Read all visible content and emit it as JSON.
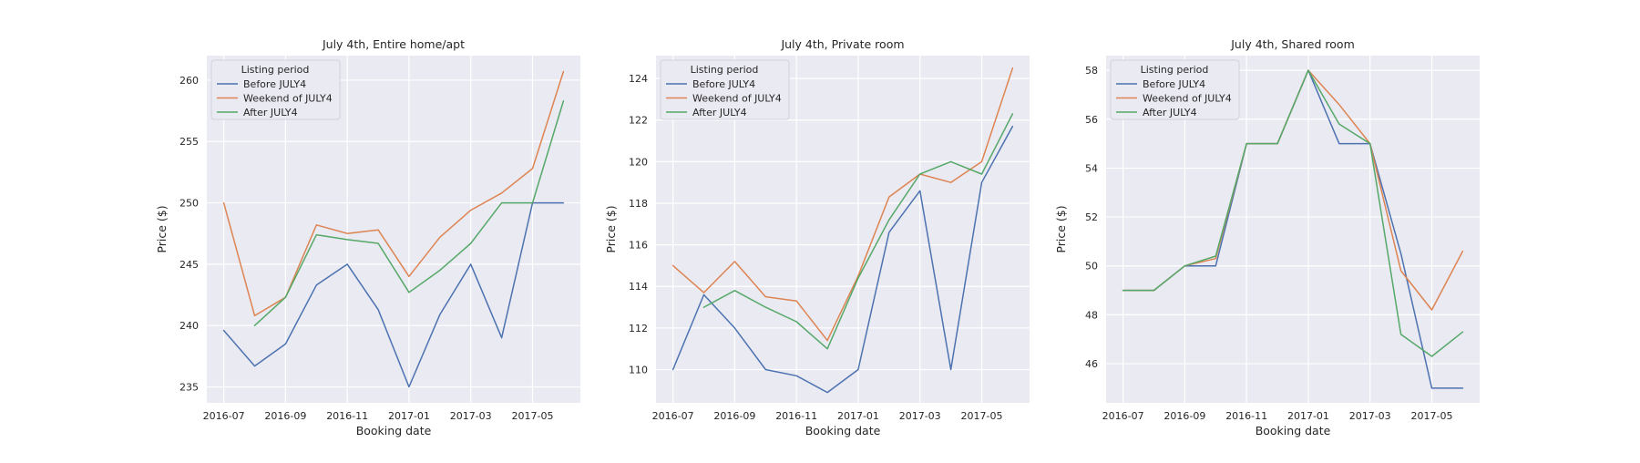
{
  "colors": {
    "plot_bg": "#eaeaf2",
    "grid": "#ffffff",
    "text": "#262626",
    "series": [
      "#4c72b0",
      "#dd8452",
      "#55a868"
    ]
  },
  "chart_data": [
    {
      "type": "line",
      "title": "July 4th, Entire home/apt",
      "xlabel": "Booking date",
      "ylabel": "Price ($)",
      "x": [
        "2016-07",
        "2016-08",
        "2016-09",
        "2016-10",
        "2016-11",
        "2016-12",
        "2017-01",
        "2017-02",
        "2017-03",
        "2017-04",
        "2017-05",
        "2017-06"
      ],
      "xticks": [
        "2016-07",
        "2016-09",
        "2016-11",
        "2017-01",
        "2017-03",
        "2017-05"
      ],
      "yticks": [
        235,
        240,
        245,
        250,
        255,
        260
      ],
      "ylim": [
        233.7,
        262.0
      ],
      "grid": true,
      "legend": {
        "title": "Listing period",
        "position": "top-left"
      },
      "series": [
        {
          "name": "Before JULY4",
          "values": [
            239.6,
            236.7,
            238.5,
            243.3,
            245.0,
            241.3,
            235.0,
            240.9,
            245.0,
            239.0,
            250.0,
            250.0
          ]
        },
        {
          "name": "Weekend of JULY4",
          "values": [
            250.0,
            240.8,
            242.3,
            248.2,
            247.5,
            247.8,
            244.0,
            247.2,
            249.4,
            250.8,
            252.8,
            260.7
          ]
        },
        {
          "name": "After JULY4",
          "values": [
            null,
            240.0,
            242.3,
            247.4,
            247.0,
            246.7,
            242.7,
            244.5,
            246.7,
            250.0,
            250.0,
            258.3
          ]
        }
      ]
    },
    {
      "type": "line",
      "title": "July 4th, Private room",
      "xlabel": "Booking date",
      "ylabel": "Price ($)",
      "x": [
        "2016-07",
        "2016-08",
        "2016-09",
        "2016-10",
        "2016-11",
        "2016-12",
        "2017-01",
        "2017-02",
        "2017-03",
        "2017-04",
        "2017-05",
        "2017-06"
      ],
      "xticks": [
        "2016-07",
        "2016-09",
        "2016-11",
        "2017-01",
        "2017-03",
        "2017-05"
      ],
      "yticks": [
        110,
        112,
        114,
        116,
        118,
        120,
        122,
        124
      ],
      "ylim": [
        108.4,
        125.1
      ],
      "grid": true,
      "legend": {
        "title": "Listing period",
        "position": "top-left"
      },
      "series": [
        {
          "name": "Before JULY4",
          "values": [
            110.0,
            113.6,
            112.0,
            110.0,
            109.7,
            108.9,
            110.0,
            116.6,
            118.6,
            110.0,
            119.0,
            121.7
          ]
        },
        {
          "name": "Weekend of JULY4",
          "values": [
            115.0,
            113.7,
            115.2,
            113.5,
            113.3,
            111.4,
            114.5,
            118.3,
            119.4,
            119.0,
            120.0,
            124.5
          ]
        },
        {
          "name": "After JULY4",
          "values": [
            null,
            113.0,
            113.8,
            113.0,
            112.3,
            111.0,
            114.4,
            117.2,
            119.4,
            120.0,
            119.4,
            122.3
          ]
        }
      ]
    },
    {
      "type": "line",
      "title": "July 4th, Shared room",
      "xlabel": "Booking date",
      "ylabel": "Price ($)",
      "x": [
        "2016-07",
        "2016-08",
        "2016-09",
        "2016-10",
        "2016-11",
        "2016-12",
        "2017-01",
        "2017-02",
        "2017-03",
        "2017-04",
        "2017-05",
        "2017-06"
      ],
      "xticks": [
        "2016-07",
        "2016-09",
        "2016-11",
        "2017-01",
        "2017-03",
        "2017-05"
      ],
      "yticks": [
        46,
        48,
        50,
        52,
        54,
        56,
        58
      ],
      "ylim": [
        44.4,
        58.6
      ],
      "grid": true,
      "legend": {
        "title": "Listing period",
        "position": "top-left"
      },
      "series": [
        {
          "name": "Before JULY4",
          "values": [
            49.0,
            49.0,
            50.0,
            50.0,
            55.0,
            55.0,
            58.0,
            55.0,
            55.0,
            50.5,
            45.0,
            45.0
          ]
        },
        {
          "name": "Weekend of JULY4",
          "values": [
            49.0,
            49.0,
            50.0,
            50.3,
            55.0,
            55.0,
            58.0,
            56.6,
            55.0,
            49.8,
            48.2,
            50.6
          ]
        },
        {
          "name": "After JULY4",
          "values": [
            49.0,
            49.0,
            50.0,
            50.4,
            55.0,
            55.0,
            58.0,
            55.8,
            55.0,
            47.2,
            46.3,
            47.3
          ]
        }
      ]
    }
  ]
}
